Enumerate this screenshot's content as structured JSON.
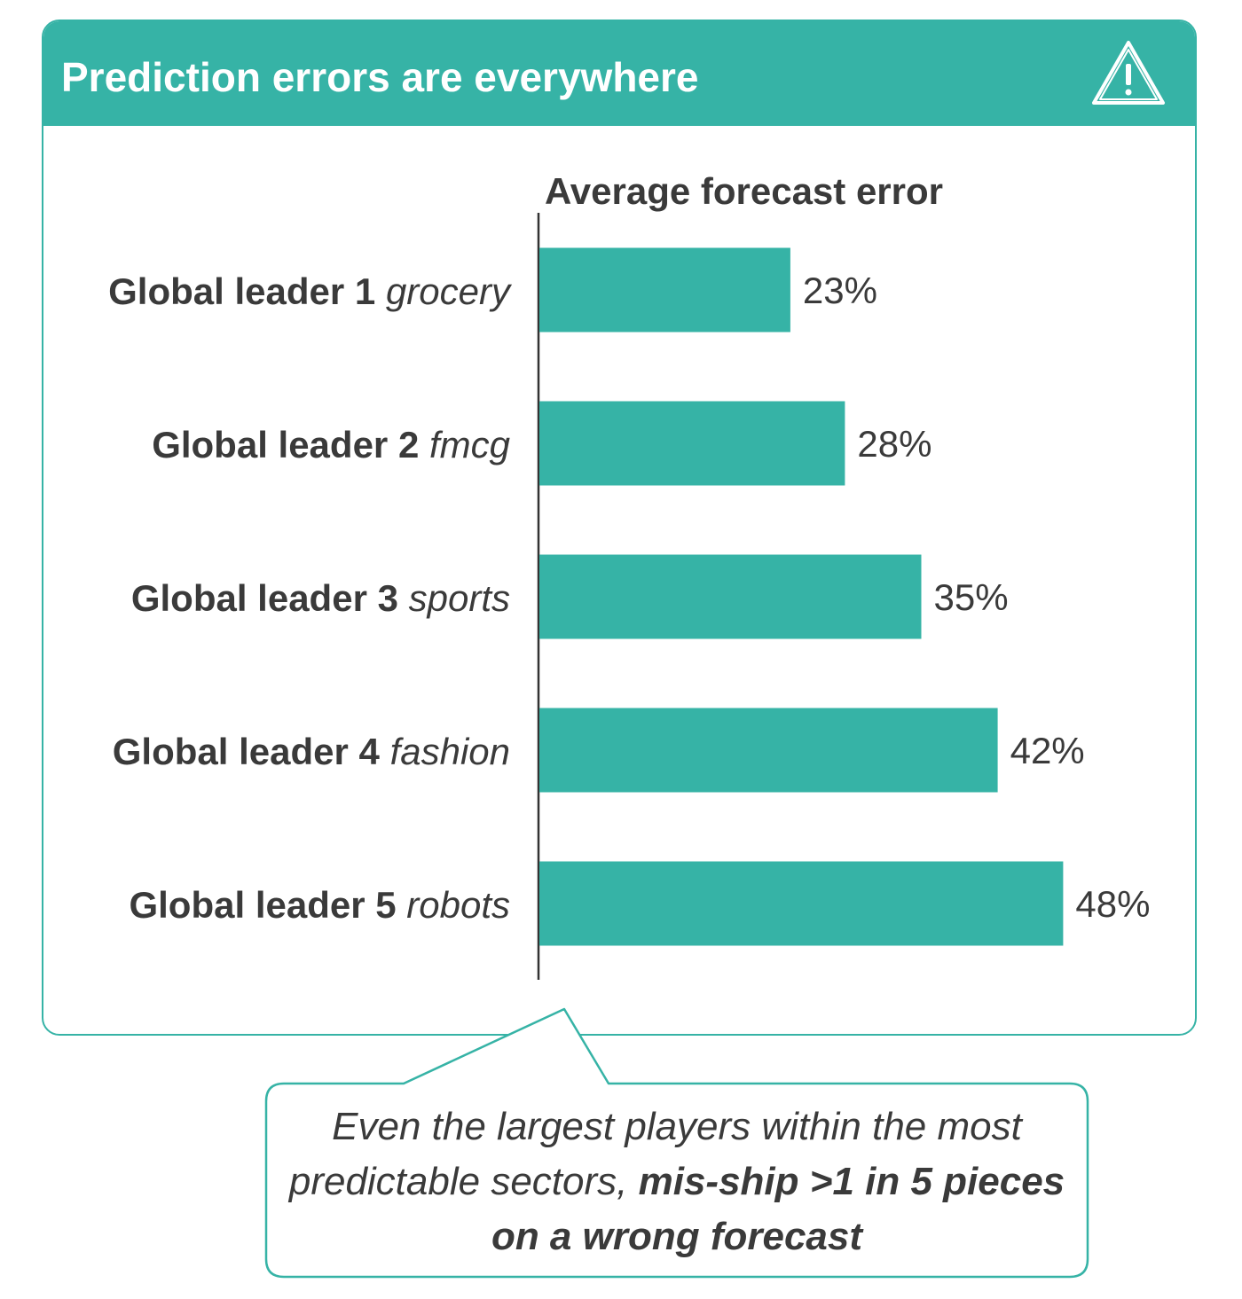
{
  "header": {
    "title": "Prediction errors are everywhere",
    "icon": "warning-icon"
  },
  "colors": {
    "accent": "#36b3a6",
    "text": "#3a3a3a",
    "axis": "#333333"
  },
  "chart_data": {
    "type": "bar",
    "orientation": "horizontal",
    "title": "Average forecast error",
    "categories": [
      {
        "name": "Global leader 1",
        "sector": "grocery"
      },
      {
        "name": "Global leader 2",
        "sector": "fmcg"
      },
      {
        "name": "Global leader 3",
        "sector": "sports"
      },
      {
        "name": "Global leader 4",
        "sector": "fashion"
      },
      {
        "name": "Global leader 5",
        "sector": "robots"
      }
    ],
    "values": [
      23,
      28,
      35,
      42,
      48
    ],
    "value_labels": [
      "23%",
      "28%",
      "35%",
      "42%",
      "48%"
    ],
    "xlim": [
      0,
      50
    ],
    "grid": false
  },
  "callout": {
    "text_plain": "Even the largest players within the most predictable sectors,",
    "text_bold": "mis-ship >1 in 5 pieces on a wrong forecast"
  }
}
